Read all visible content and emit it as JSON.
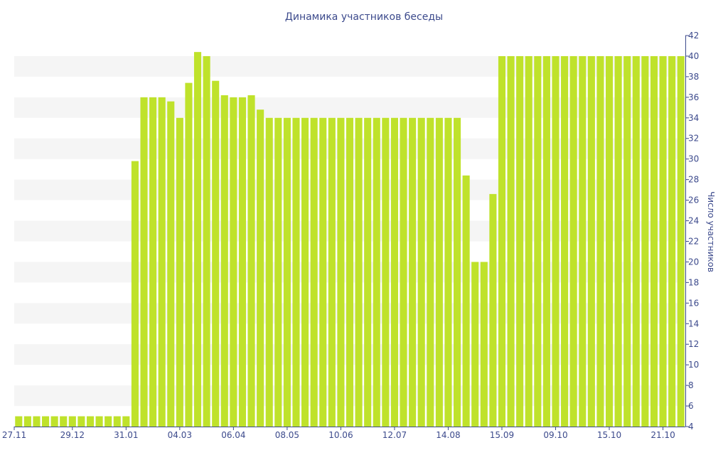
{
  "chart_data": {
    "type": "bar",
    "title": "Динамика участников беседы",
    "xlabel": "",
    "ylabel": "Число участников",
    "y_axis_side": "right",
    "ylim": [
      4,
      42
    ],
    "yticks": [
      4,
      6,
      8,
      10,
      12,
      14,
      16,
      18,
      20,
      22,
      24,
      26,
      28,
      30,
      32,
      34,
      36,
      38,
      40,
      42
    ],
    "grid": "alternating horizontal bands",
    "bar_color": "#bfe22b",
    "band_color": "#f5f5f5",
    "text_color": "#3c4a8c",
    "x_ticks": [
      {
        "label": "27.11",
        "index": 0
      },
      {
        "label": "29.12",
        "index": 6
      },
      {
        "label": "31.01",
        "index": 12
      },
      {
        "label": "04.03",
        "index": 18
      },
      {
        "label": "06.04",
        "index": 24
      },
      {
        "label": "08.05",
        "index": 30
      },
      {
        "label": "10.06",
        "index": 36
      },
      {
        "label": "12.07",
        "index": 42
      },
      {
        "label": "14.08",
        "index": 48
      },
      {
        "label": "15.09",
        "index": 54
      },
      {
        "label": "09.10",
        "index": 60
      },
      {
        "label": "15.10",
        "index": 66
      },
      {
        "label": "21.10",
        "index": 72
      }
    ],
    "values": [
      5,
      5,
      5,
      5,
      5,
      5,
      5,
      5,
      5,
      5,
      5,
      5,
      5,
      29.8,
      36,
      36,
      36,
      35.6,
      34,
      37.4,
      40.4,
      40,
      37.6,
      36.2,
      36,
      36,
      36.2,
      34.8,
      34,
      34,
      34,
      34,
      34,
      34,
      34,
      34,
      34,
      34,
      34,
      34,
      34,
      34,
      34,
      34,
      34,
      34,
      34,
      34,
      34,
      34,
      28.4,
      20,
      20,
      26.6,
      40,
      40,
      40,
      40,
      40,
      40,
      40,
      40,
      40,
      40,
      40,
      40,
      40,
      40,
      40,
      40,
      40,
      40,
      40,
      40,
      40
    ]
  }
}
